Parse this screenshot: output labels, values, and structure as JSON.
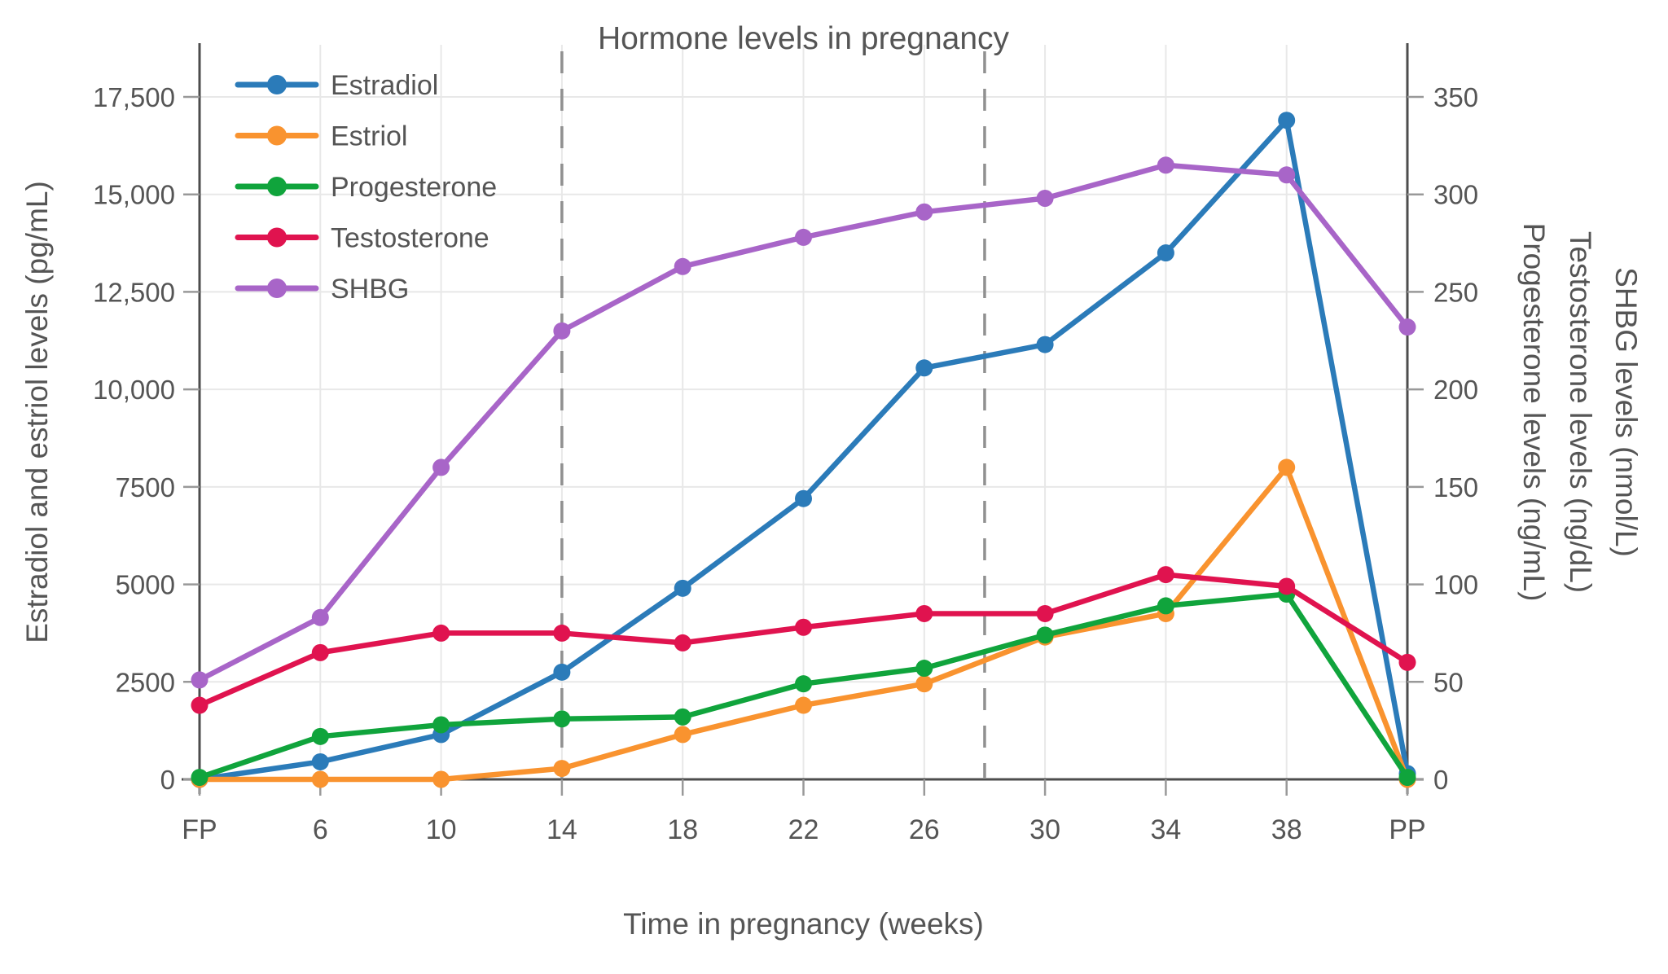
{
  "title": {
    "text": "Hormone levels in pregnancy"
  },
  "axes": {
    "x": {
      "title": "Time in pregnancy (weeks)",
      "tick_labels": [
        "FP",
        "6",
        "10",
        "14",
        "18",
        "22",
        "26",
        "30",
        "34",
        "38",
        "PP"
      ]
    },
    "left": {
      "title": "Estradiol and estriol levels (pg/mL)",
      "tick_labels": [
        "0",
        "2500",
        "5000",
        "7500",
        "10,000",
        "12,500",
        "15,000",
        "17,500"
      ],
      "tick_values": [
        0,
        2500,
        5000,
        7500,
        10000,
        12500,
        15000,
        17500
      ],
      "range": [
        0,
        17500
      ]
    },
    "right": {
      "titles": [
        "Progesterone levels (ng/mL)",
        "Testosterone levels (ng/dL)",
        "SHBG levels (nmol/L)"
      ],
      "tick_labels": [
        "0",
        "50",
        "100",
        "150",
        "200",
        "250",
        "300",
        "350"
      ],
      "tick_values": [
        0,
        50,
        100,
        150,
        200,
        250,
        300,
        350
      ],
      "range": [
        0,
        350
      ]
    }
  },
  "legend": {
    "items": [
      "Estradiol",
      "Estriol",
      "Progesterone",
      "Testosterone",
      "SHBG"
    ]
  },
  "chart_data": {
    "type": "line",
    "title": "Hormone levels in pregnancy",
    "xlabel": "Time in pregnancy (weeks)",
    "ylabel_left": "Estradiol and estriol levels (pg/mL)",
    "ylabels_right": [
      "Progesterone levels (ng/mL)",
      "Testosterone levels (ng/dL)",
      "SHBG levels (nmol/L)"
    ],
    "categories": [
      "FP",
      "6",
      "10",
      "14",
      "18",
      "22",
      "26",
      "30",
      "34",
      "38",
      "PP"
    ],
    "ylim_left": [
      0,
      17500
    ],
    "ylim_right": [
      0,
      350
    ],
    "grid": true,
    "legend_position": "top-left-inside",
    "series": [
      {
        "name": "Estradiol",
        "axis": "left",
        "unit": "pg/mL",
        "color": "#2b7bb9",
        "values": [
          0,
          450,
          1150,
          2750,
          4900,
          7200,
          10550,
          11150,
          13500,
          16900,
          150
        ]
      },
      {
        "name": "Estriol",
        "axis": "left",
        "unit": "pg/mL",
        "color": "#f9932f",
        "values": [
          0,
          0,
          0,
          280,
          1150,
          1900,
          2450,
          3650,
          4250,
          8000,
          0
        ]
      },
      {
        "name": "Progesterone",
        "axis": "right",
        "unit": "ng/mL",
        "color": "#10a43c",
        "values": [
          1,
          22,
          28,
          31,
          32,
          49,
          57,
          74,
          89,
          95,
          1
        ]
      },
      {
        "name": "Testosterone",
        "axis": "right",
        "unit": "ng/dL",
        "color": "#e0134f",
        "values": [
          38,
          65,
          75,
          75,
          70,
          78,
          85,
          85,
          105,
          99,
          60
        ]
      },
      {
        "name": "SHBG",
        "axis": "right",
        "unit": "nmol/L",
        "color": "#a865c8",
        "values": [
          51,
          83,
          160,
          230,
          263,
          278,
          291,
          298,
          315,
          310,
          232
        ]
      }
    ],
    "reference_lines": [
      {
        "orientation": "vertical",
        "style": "dashed",
        "at_category_index": 3,
        "week": "14"
      },
      {
        "orientation": "vertical",
        "style": "dashed",
        "at_category_index": 6.5,
        "week": "28"
      }
    ]
  },
  "style": {
    "background": "#ffffff",
    "grid_color": "#e8e8e8",
    "spine_color": "#4d4d4d",
    "tick_color": "#999999",
    "text_color": "#555555",
    "dash_color": "#909090"
  }
}
